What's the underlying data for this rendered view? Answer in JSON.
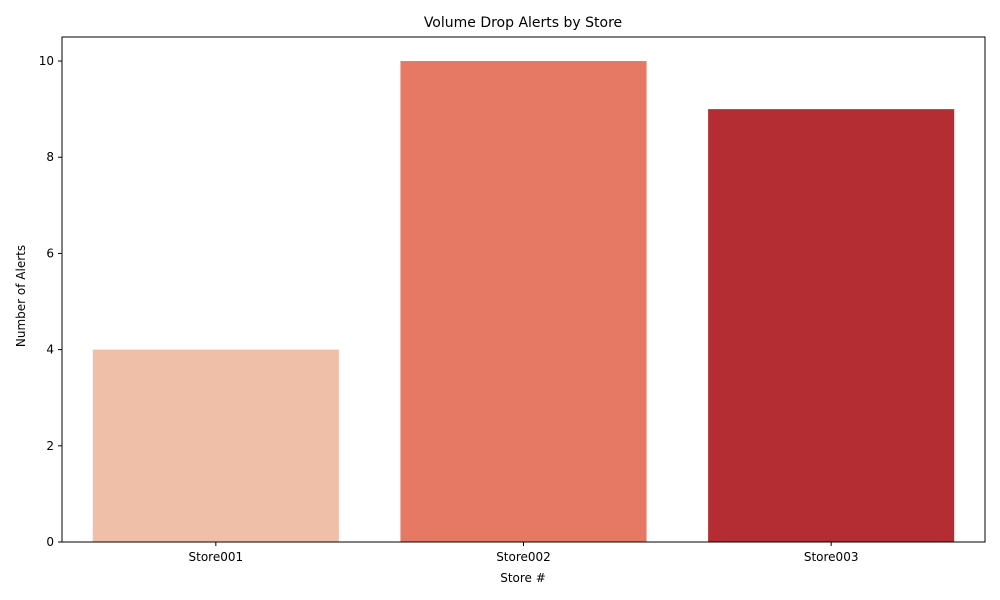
{
  "chart_data": {
    "type": "bar",
    "title": "Volume Drop Alerts by Store",
    "xlabel": "Store #",
    "ylabel": "Number of Alerts",
    "categories": [
      "Store001",
      "Store002",
      "Store003"
    ],
    "values": [
      4,
      10,
      9
    ],
    "colors": [
      "#f0bfa8",
      "#e57963",
      "#b42d33"
    ],
    "ylim": [
      0,
      10.5
    ],
    "yticks": [
      "0",
      "2",
      "4",
      "6",
      "8",
      "10"
    ],
    "grid": false,
    "legend": "none"
  }
}
